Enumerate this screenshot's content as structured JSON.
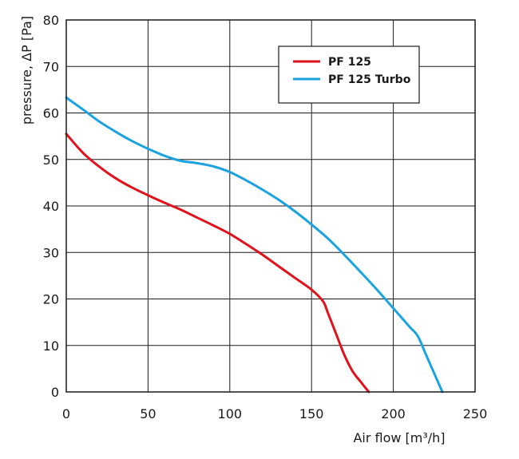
{
  "chart_data": {
    "type": "line",
    "title": "",
    "xlabel": "Air flow [m³/h]",
    "ylabel": "pressure, ΔP [Pa]",
    "xlim": [
      0,
      250
    ],
    "ylim": [
      0,
      80
    ],
    "xticks": [
      0,
      50,
      100,
      150,
      200,
      250
    ],
    "yticks": [
      0,
      10,
      20,
      30,
      40,
      50,
      60,
      70,
      80
    ],
    "grid": true,
    "legend_position": "top-right",
    "series": [
      {
        "name": "PF 125",
        "color": "#e0121b",
        "points": [
          [
            0,
            55.5
          ],
          [
            10,
            51.5
          ],
          [
            20,
            48.5
          ],
          [
            30,
            46
          ],
          [
            40,
            44
          ],
          [
            50,
            42.3
          ],
          [
            60,
            40.7
          ],
          [
            70,
            39.2
          ],
          [
            80,
            37.5
          ],
          [
            90,
            35.8
          ],
          [
            100,
            34
          ],
          [
            110,
            31.8
          ],
          [
            120,
            29.5
          ],
          [
            130,
            27
          ],
          [
            140,
            24.5
          ],
          [
            150,
            22
          ],
          [
            157,
            19.5
          ],
          [
            160,
            17
          ],
          [
            165,
            12.5
          ],
          [
            170,
            8
          ],
          [
            175,
            4.5
          ],
          [
            180,
            2.2
          ],
          [
            185,
            0
          ]
        ]
      },
      {
        "name": "PF 125 Turbo",
        "color": "#1ba3e0",
        "points": [
          [
            0,
            63.3
          ],
          [
            10,
            60.8
          ],
          [
            20,
            58.2
          ],
          [
            30,
            56
          ],
          [
            40,
            54
          ],
          [
            50,
            52.3
          ],
          [
            60,
            50.8
          ],
          [
            70,
            49.7
          ],
          [
            80,
            49.2
          ],
          [
            90,
            48.5
          ],
          [
            100,
            47.3
          ],
          [
            110,
            45.5
          ],
          [
            120,
            43.5
          ],
          [
            130,
            41.3
          ],
          [
            140,
            38.8
          ],
          [
            150,
            36
          ],
          [
            160,
            33
          ],
          [
            170,
            29.5
          ],
          [
            180,
            25.8
          ],
          [
            190,
            22
          ],
          [
            200,
            18
          ],
          [
            210,
            14
          ],
          [
            215,
            12
          ],
          [
            220,
            8
          ],
          [
            225,
            4
          ],
          [
            230,
            0
          ]
        ]
      }
    ]
  }
}
